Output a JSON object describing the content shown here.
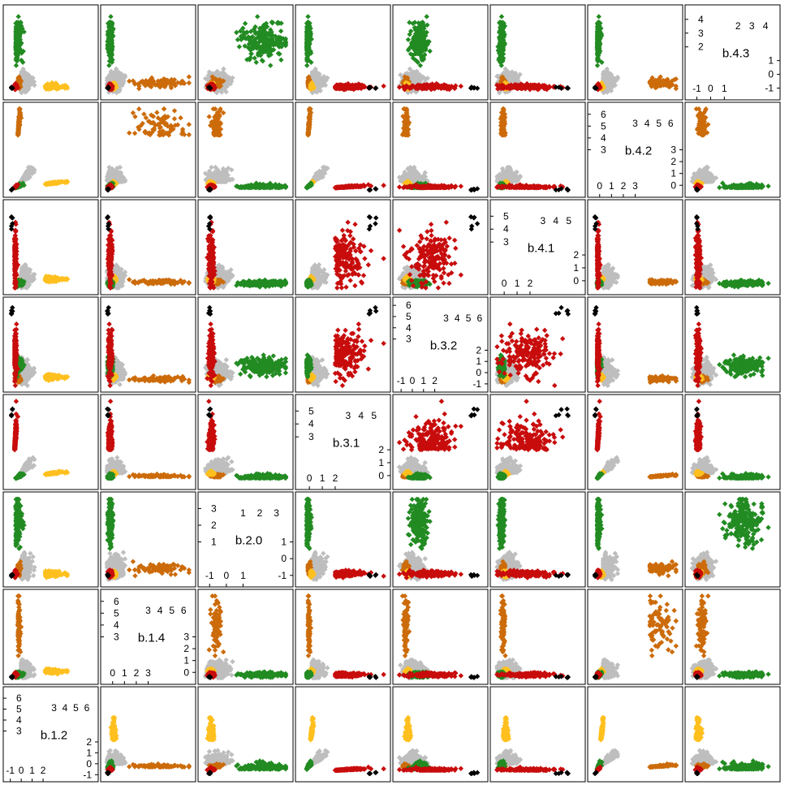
{
  "chart_data": {
    "type": "scatter-matrix",
    "variables": [
      {
        "label": "b.1.2",
        "lim": [
          -1.2,
          6.6
        ],
        "lower_ticks": [
          -1,
          0,
          1,
          2
        ],
        "upper_ticks": [
          3,
          4,
          5,
          6
        ]
      },
      {
        "label": "b.1.4",
        "lim": [
          -0.6,
          6.6
        ],
        "lower_ticks": [
          0,
          1,
          2,
          3
        ],
        "upper_ticks": [
          3,
          4,
          5,
          6
        ]
      },
      {
        "label": "b.2.0",
        "lim": [
          -1.4,
          3.7
        ],
        "lower_ticks": [
          -1,
          0,
          1
        ],
        "upper_ticks": [
          1,
          2,
          3
        ]
      },
      {
        "label": "b.3.1",
        "lim": [
          -0.7,
          5.9
        ],
        "lower_ticks": [
          0,
          1,
          2
        ],
        "upper_ticks": [
          3,
          4,
          5
        ]
      },
      {
        "label": "b.3.2",
        "lim": [
          -1.3,
          6.3
        ],
        "lower_ticks": [
          -1,
          0,
          1,
          2
        ],
        "upper_ticks": [
          3,
          4,
          5,
          6
        ]
      },
      {
        "label": "b.4.1",
        "lim": [
          -0.7,
          5.9
        ],
        "lower_ticks": [
          0,
          1,
          2
        ],
        "upper_ticks": [
          3,
          4,
          5
        ]
      },
      {
        "label": "b.4.2",
        "lim": [
          -0.6,
          6.6
        ],
        "lower_ticks": [
          0,
          1,
          2,
          3
        ],
        "upper_ticks": [
          3,
          4,
          5,
          6
        ]
      },
      {
        "label": "b.4.3",
        "lim": [
          -1.5,
          4.7
        ],
        "lower_ticks": [
          -1,
          0,
          1
        ],
        "upper_ticks": [
          2,
          3,
          4
        ]
      }
    ],
    "groups": [
      {
        "name": "",
        "color": "#bebebe"
      },
      {
        "name": "",
        "color": "#ffc01f"
      },
      {
        "name": "",
        "color": "#cc6b0a"
      },
      {
        "name": "",
        "color": "#228b22"
      },
      {
        "name": "",
        "color": "#c80c0c"
      },
      {
        "name": "",
        "color": "#000000"
      }
    ],
    "archetypes": {
      "grey": [
        0.0,
        0.2,
        -0.5,
        0.2,
        0.0,
        0.2,
        0.3,
        -0.5
      ],
      "yellow": [
        2.2,
        0.1,
        -0.9,
        0.1,
        -0.4,
        0.1,
        0.1,
        -0.9
      ],
      "orange": [
        -0.3,
        4.0,
        -0.6,
        -0.1,
        -0.6,
        -0.1,
        4.2,
        -0.6
      ],
      "green": [
        -0.5,
        -0.2,
        2.3,
        -0.2,
        0.6,
        -0.2,
        -0.2,
        2.4
      ],
      "red": [
        -0.6,
        -0.2,
        -0.9,
        2.0,
        1.6,
        1.8,
        -0.2,
        -0.9
      ],
      "black": [
        -0.9,
        -0.4,
        -1.0,
        4.6,
        5.5,
        4.8,
        -0.4,
        -1.0
      ]
    },
    "series": [
      {
        "group": 0,
        "n": 340,
        "center": "grey",
        "spread": [
          0.35,
          0.35,
          0.3,
          0.35,
          0.4,
          0.35,
          0.35,
          0.3
        ]
      },
      {
        "group": 1,
        "n": 210,
        "center": "yellow",
        "spread": [
          0.7,
          0.08,
          0.08,
          0.08,
          0.1,
          0.08,
          0.08,
          0.08
        ]
      },
      {
        "group": 2,
        "n": 80,
        "center": "orange",
        "spread": [
          0.1,
          1.1,
          0.15,
          0.08,
          0.1,
          0.08,
          1.1,
          0.15
        ]
      },
      {
        "group": 3,
        "n": 200,
        "center": "green",
        "spread": [
          0.2,
          0.1,
          0.7,
          0.1,
          0.4,
          0.1,
          0.1,
          0.7
        ]
      },
      {
        "group": 4,
        "n": 180,
        "center": "red",
        "spread": [
          0.08,
          0.08,
          0.08,
          1.1,
          0.9,
          1.0,
          0.08,
          0.08
        ]
      },
      {
        "group": 5,
        "n": 6,
        "center": "black",
        "spread": [
          0.05,
          0.05,
          0.05,
          0.3,
          0.3,
          0.3,
          0.05,
          0.05
        ]
      }
    ],
    "xlabel": "",
    "ylabel": "",
    "title": ""
  }
}
